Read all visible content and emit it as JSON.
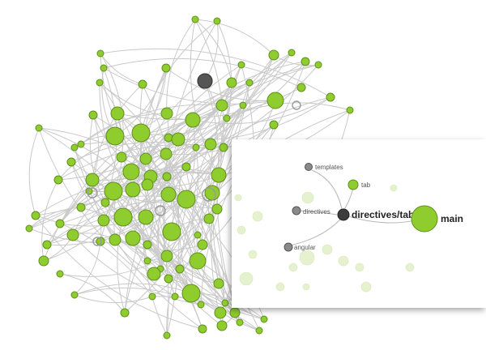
{
  "graph": {
    "node_color": "#8fcc2e",
    "hub_color": "#555555",
    "edge_color": "#c9c9c9"
  },
  "zoom_panel": {
    "labels": {
      "templates": "templates",
      "tab": "tab",
      "directives": "directives",
      "directives_tabs": "directives/tabs",
      "main": "main",
      "angular": "angular"
    },
    "colors": {
      "selected": "#3d3d3d",
      "neighbor": "#8a8a8a",
      "module": "#8fcc2e",
      "faded": "#e6f2cf"
    }
  }
}
